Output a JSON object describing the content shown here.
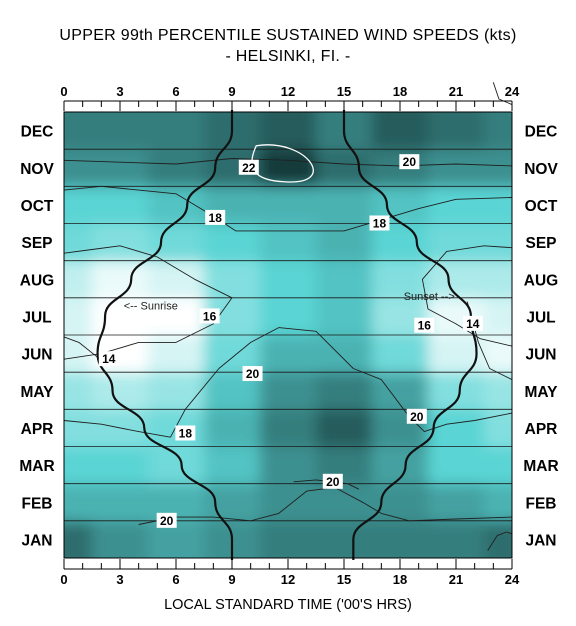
{
  "title": "UPPER 99th PERCENTILE SUSTAINED WIND SPEEDS (kts)",
  "subtitle": "- HELSINKI, FI. -",
  "chart_data": {
    "type": "heatmap",
    "title": "UPPER 99th PERCENTILE SUSTAINED WIND SPEEDS (kts)",
    "subtitle": "- HELSINKI, FI. -",
    "xlabel": "LOCAL STANDARD TIME ('00'S HRS)",
    "ylabel": "",
    "x_ticks": [
      "0",
      "3",
      "6",
      "9",
      "12",
      "15",
      "18",
      "21",
      "24"
    ],
    "xlim": [
      0,
      24
    ],
    "months": [
      "JAN",
      "FEB",
      "MAR",
      "APR",
      "MAY",
      "JUN",
      "JUL",
      "AUG",
      "SEP",
      "OCT",
      "NOV",
      "DEC"
    ],
    "z_units": "kts",
    "contour_levels": [
      14,
      16,
      18,
      20,
      22
    ],
    "color_scale": {
      "low": "#ffffff",
      "mid": "#5ad4d4",
      "high": "#183a3a"
    },
    "hours": [
      0,
      3,
      6,
      9,
      12,
      15,
      18,
      21,
      24
    ],
    "values_kts": [
      [
        21,
        20,
        19.5,
        20,
        20.5,
        20.5,
        20.5,
        20.5,
        21
      ],
      [
        19,
        19,
        19,
        19.5,
        20,
        20,
        20,
        19.5,
        19
      ],
      [
        18,
        18,
        17.5,
        18.5,
        20,
        20.5,
        19.5,
        18,
        18
      ],
      [
        17,
        17,
        17.5,
        19,
        20.5,
        21.5,
        20,
        18,
        17
      ],
      [
        16.5,
        16,
        16.5,
        18.5,
        20,
        20.5,
        19.5,
        17,
        16.5
      ],
      [
        15,
        14,
        15,
        17.5,
        19,
        19,
        17.5,
        15,
        14.5
      ],
      [
        15,
        13.5,
        14,
        17,
        18,
        18.5,
        16.5,
        14.5,
        15
      ],
      [
        15.5,
        14.5,
        15,
        17,
        18,
        18.5,
        17,
        16,
        16
      ],
      [
        17.5,
        17,
        17.5,
        18,
        18.5,
        19,
        18,
        17.5,
        17.5
      ],
      [
        18,
        18,
        18.5,
        19,
        19,
        19,
        18.5,
        18,
        18
      ],
      [
        20,
        20,
        20.5,
        21,
        22.5,
        21,
        20.5,
        20,
        20
      ],
      [
        20.5,
        20.5,
        20.5,
        21,
        21.5,
        20.5,
        21.5,
        21,
        20.5
      ]
    ],
    "contour_labels": [
      "22",
      "20",
      "18",
      "18",
      "16",
      "16",
      "14",
      "14",
      "20",
      "18",
      "20",
      "20",
      "20"
    ],
    "annotations": [
      "<-- Sunrise",
      "Sunset -->"
    ],
    "sunrise_hours": [
      9,
      8.1,
      6.3,
      4.3,
      2.6,
      1.8,
      2.2,
      3.6,
      5.2,
      6.6,
      8.1,
      9
    ],
    "sunset_hours": [
      15.5,
      17,
      18.3,
      19.8,
      21.2,
      22.1,
      21.8,
      20.6,
      18.9,
      17.3,
      15.8,
      15
    ]
  }
}
